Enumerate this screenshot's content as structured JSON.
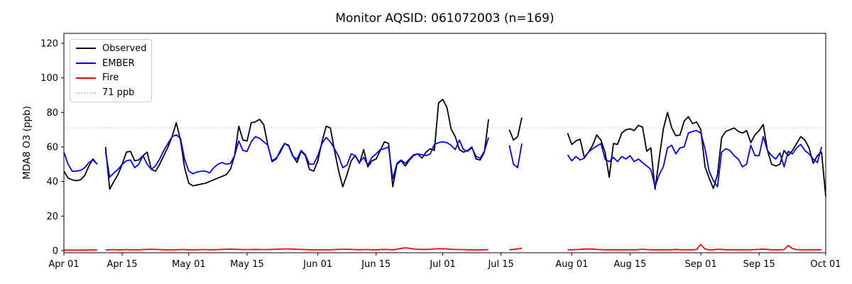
{
  "title": "Monitor AQSID: 061072003 (n=169)",
  "y_axis": {
    "label": "MDA8 O3 (ppb)",
    "ticks": [
      0,
      20,
      40,
      60,
      80,
      100,
      120
    ]
  },
  "x_axis": {
    "ticks": [
      {
        "label": "Apr 01",
        "day": 0
      },
      {
        "label": "Apr 15",
        "day": 14
      },
      {
        "label": "May 01",
        "day": 30
      },
      {
        "label": "May 15",
        "day": 44
      },
      {
        "label": "Jun 01",
        "day": 61
      },
      {
        "label": "Jun 15",
        "day": 75
      },
      {
        "label": "Jul 01",
        "day": 91
      },
      {
        "label": "Jul 15",
        "day": 105
      },
      {
        "label": "Aug 01",
        "day": 122
      },
      {
        "label": "Aug 15",
        "day": 136
      },
      {
        "label": "Sep 01",
        "day": 153
      },
      {
        "label": "Sep 15",
        "day": 167
      },
      {
        "label": "Oct 01",
        "day": 183
      }
    ]
  },
  "legend": [
    {
      "label": "Observed",
      "color": "#000000",
      "style": "solid"
    },
    {
      "label": "EMBER",
      "color": "#0000ff",
      "style": "solid"
    },
    {
      "label": "Fire",
      "color": "#ff0000",
      "style": "solid"
    },
    {
      "label": "71 ppb",
      "color": "#c9c9c9",
      "style": "dotted"
    }
  ],
  "chart_data": {
    "type": "line",
    "title": "Monitor AQSID: 061072003 (n=169)",
    "xlabel": "",
    "ylabel": "MDA8 O3 (ppb)",
    "x_unit": "daily values, day offset from Apr 01; null = missing day",
    "x_start": "Apr 01",
    "x_end": "Oct 01",
    "x_range_days": 183,
    "ylim": [
      -1.2,
      125.8
    ],
    "grid": false,
    "legend_position": "upper left",
    "threshold_line": {
      "value": 71,
      "label": "71 ppb",
      "color": "#c9c9c9",
      "linestyle": "dotted"
    },
    "series": [
      {
        "name": "Observed",
        "color": "#000000",
        "values": [
          46,
          42,
          41,
          40.5,
          41,
          43.5,
          49,
          53,
          50,
          null,
          60,
          35.5,
          40,
          44,
          50,
          57,
          57.5,
          52,
          52.5,
          55,
          57,
          47,
          46,
          50,
          55,
          60,
          66,
          74,
          64,
          48,
          39,
          37.5,
          38,
          38.5,
          39,
          40,
          41,
          42,
          43,
          44,
          47,
          55,
          72,
          64,
          63.5,
          74,
          74.5,
          76,
          73,
          61,
          51.5,
          53,
          58,
          62,
          61,
          55,
          51,
          57.5,
          55,
          47,
          46,
          52,
          63,
          72,
          71,
          58,
          46,
          37,
          44,
          52,
          55,
          50.5,
          58.5,
          48.5,
          52,
          53,
          58,
          63,
          62,
          37,
          50,
          52,
          49,
          52.5,
          55,
          56,
          53.5,
          57,
          59,
          58,
          85.5,
          87.5,
          83,
          70.5,
          66,
          58.5,
          57,
          58,
          60,
          53,
          52.5,
          57,
          76,
          null,
          null,
          null,
          null,
          70,
          64,
          66,
          77,
          null,
          null,
          null,
          null,
          null,
          null,
          null,
          null,
          null,
          null,
          68,
          61.5,
          63.5,
          64.5,
          54,
          57,
          61,
          67,
          64,
          57,
          42.5,
          62,
          61.5,
          68,
          70,
          70.5,
          69.5,
          72.5,
          71.5,
          57.5,
          59.5,
          35.5,
          53.5,
          70.5,
          80,
          71,
          66.5,
          67,
          75,
          77.5,
          73.5,
          74.5,
          70,
          48.5,
          42,
          36,
          44,
          65.5,
          69,
          70,
          71,
          69,
          68,
          69.5,
          62.5,
          67,
          69.5,
          73,
          58,
          50,
          49,
          50,
          58,
          55,
          58,
          62,
          66,
          64,
          59.5,
          50.5,
          55,
          57,
          31.5
        ]
      },
      {
        "name": "EMBER",
        "color": "#0000ff",
        "values": [
          57,
          50,
          46,
          46,
          46.5,
          48,
          51,
          52.5,
          50,
          null,
          57.5,
          42.5,
          45,
          47,
          50,
          52,
          52.5,
          48,
          50,
          55,
          50,
          47,
          49,
          53,
          58,
          62,
          66,
          67,
          65,
          53,
          46,
          44.5,
          45.5,
          46,
          46,
          45,
          48,
          50,
          51,
          50,
          50.5,
          55,
          63.5,
          58,
          57.5,
          63,
          66,
          65,
          63,
          61,
          52,
          53.5,
          57,
          62,
          60.5,
          54.5,
          53,
          58,
          55.5,
          50,
          50,
          55,
          62,
          65.5,
          63,
          59,
          54.5,
          48,
          49.5,
          56,
          55,
          51,
          54,
          49.5,
          54,
          56,
          58.5,
          59,
          60,
          41.5,
          50.5,
          52.5,
          50.5,
          53,
          55.5,
          56,
          55.5,
          55,
          56,
          61.5,
          62.5,
          63,
          62.5,
          61,
          58.5,
          64,
          58.5,
          57.5,
          59.5,
          54.5,
          53.5,
          57.5,
          65.5,
          null,
          null,
          null,
          null,
          61,
          50,
          48,
          62,
          null,
          null,
          null,
          null,
          null,
          null,
          null,
          null,
          null,
          null,
          55.5,
          52,
          54.5,
          52.5,
          53.5,
          57,
          59,
          60.5,
          62,
          53,
          51.5,
          54,
          51.5,
          54.5,
          53,
          55,
          51.5,
          53,
          51,
          49,
          47,
          37,
          44,
          48.5,
          59.5,
          61,
          56,
          59.5,
          60,
          68,
          69,
          69.5,
          68,
          59,
          46,
          40.5,
          37,
          57,
          59,
          58,
          55,
          53,
          48.5,
          50,
          61,
          55,
          55,
          66,
          58,
          55,
          53,
          56.5,
          48.5,
          57.5,
          56,
          59.5,
          61.5,
          58,
          56,
          53,
          51,
          60,
          null
        ]
      },
      {
        "name": "Fire",
        "color": "#ff0000",
        "values": [
          0.3,
          0.3,
          0.3,
          0.3,
          0.3,
          0.3,
          0.4,
          0.4,
          0.3,
          null,
          0.4,
          0.5,
          0.6,
          0.5,
          0.5,
          0.6,
          0.5,
          0.5,
          0.5,
          0.6,
          0.7,
          0.8,
          0.7,
          0.6,
          0.5,
          0.5,
          0.5,
          0.5,
          0.6,
          0.6,
          0.5,
          0.5,
          0.5,
          0.6,
          0.6,
          0.5,
          0.5,
          0.6,
          0.7,
          0.8,
          0.9,
          0.8,
          0.7,
          0.6,
          0.6,
          0.6,
          0.7,
          0.6,
          0.6,
          0.6,
          0.7,
          0.8,
          0.9,
          1,
          1,
          0.9,
          0.8,
          0.7,
          0.6,
          0.5,
          0.5,
          0.5,
          0.5,
          0.5,
          0.5,
          0.6,
          0.7,
          0.8,
          0.8,
          0.7,
          0.6,
          0.5,
          0.6,
          0.6,
          0.5,
          0.5,
          0.6,
          0.7,
          0.6,
          0.5,
          0.8,
          1.3,
          1.6,
          1.4,
          1,
          0.8,
          0.7,
          0.7,
          0.8,
          1,
          1.1,
          1.1,
          1,
          0.8,
          0.7,
          0.6,
          0.6,
          0.5,
          0.5,
          0.4,
          0.4,
          0.5,
          0.6,
          null,
          null,
          null,
          null,
          0.5,
          0.7,
          1,
          1.4,
          null,
          null,
          null,
          null,
          null,
          null,
          null,
          null,
          null,
          null,
          0.4,
          0.5,
          0.6,
          0.7,
          0.9,
          1,
          0.9,
          0.7,
          0.6,
          0.5,
          0.5,
          0.5,
          0.4,
          0.5,
          0.5,
          0.5,
          0.5,
          0.6,
          0.8,
          0.6,
          0.5,
          0.4,
          0.5,
          0.5,
          0.5,
          0.5,
          0.7,
          0.5,
          0.5,
          0.5,
          0.5,
          0.6,
          3.6,
          0.9,
          0.5,
          0.5,
          0.8,
          0.7,
          0.5,
          0.5,
          0.5,
          0.5,
          0.5,
          0.5,
          0.5,
          0.6,
          0.7,
          0.9,
          0.7,
          0.5,
          0.5,
          0.5,
          0.6,
          3,
          1.2,
          0.6,
          0.5,
          0.5,
          0.5,
          0.5,
          0.5,
          0.5,
          null
        ]
      }
    ]
  }
}
